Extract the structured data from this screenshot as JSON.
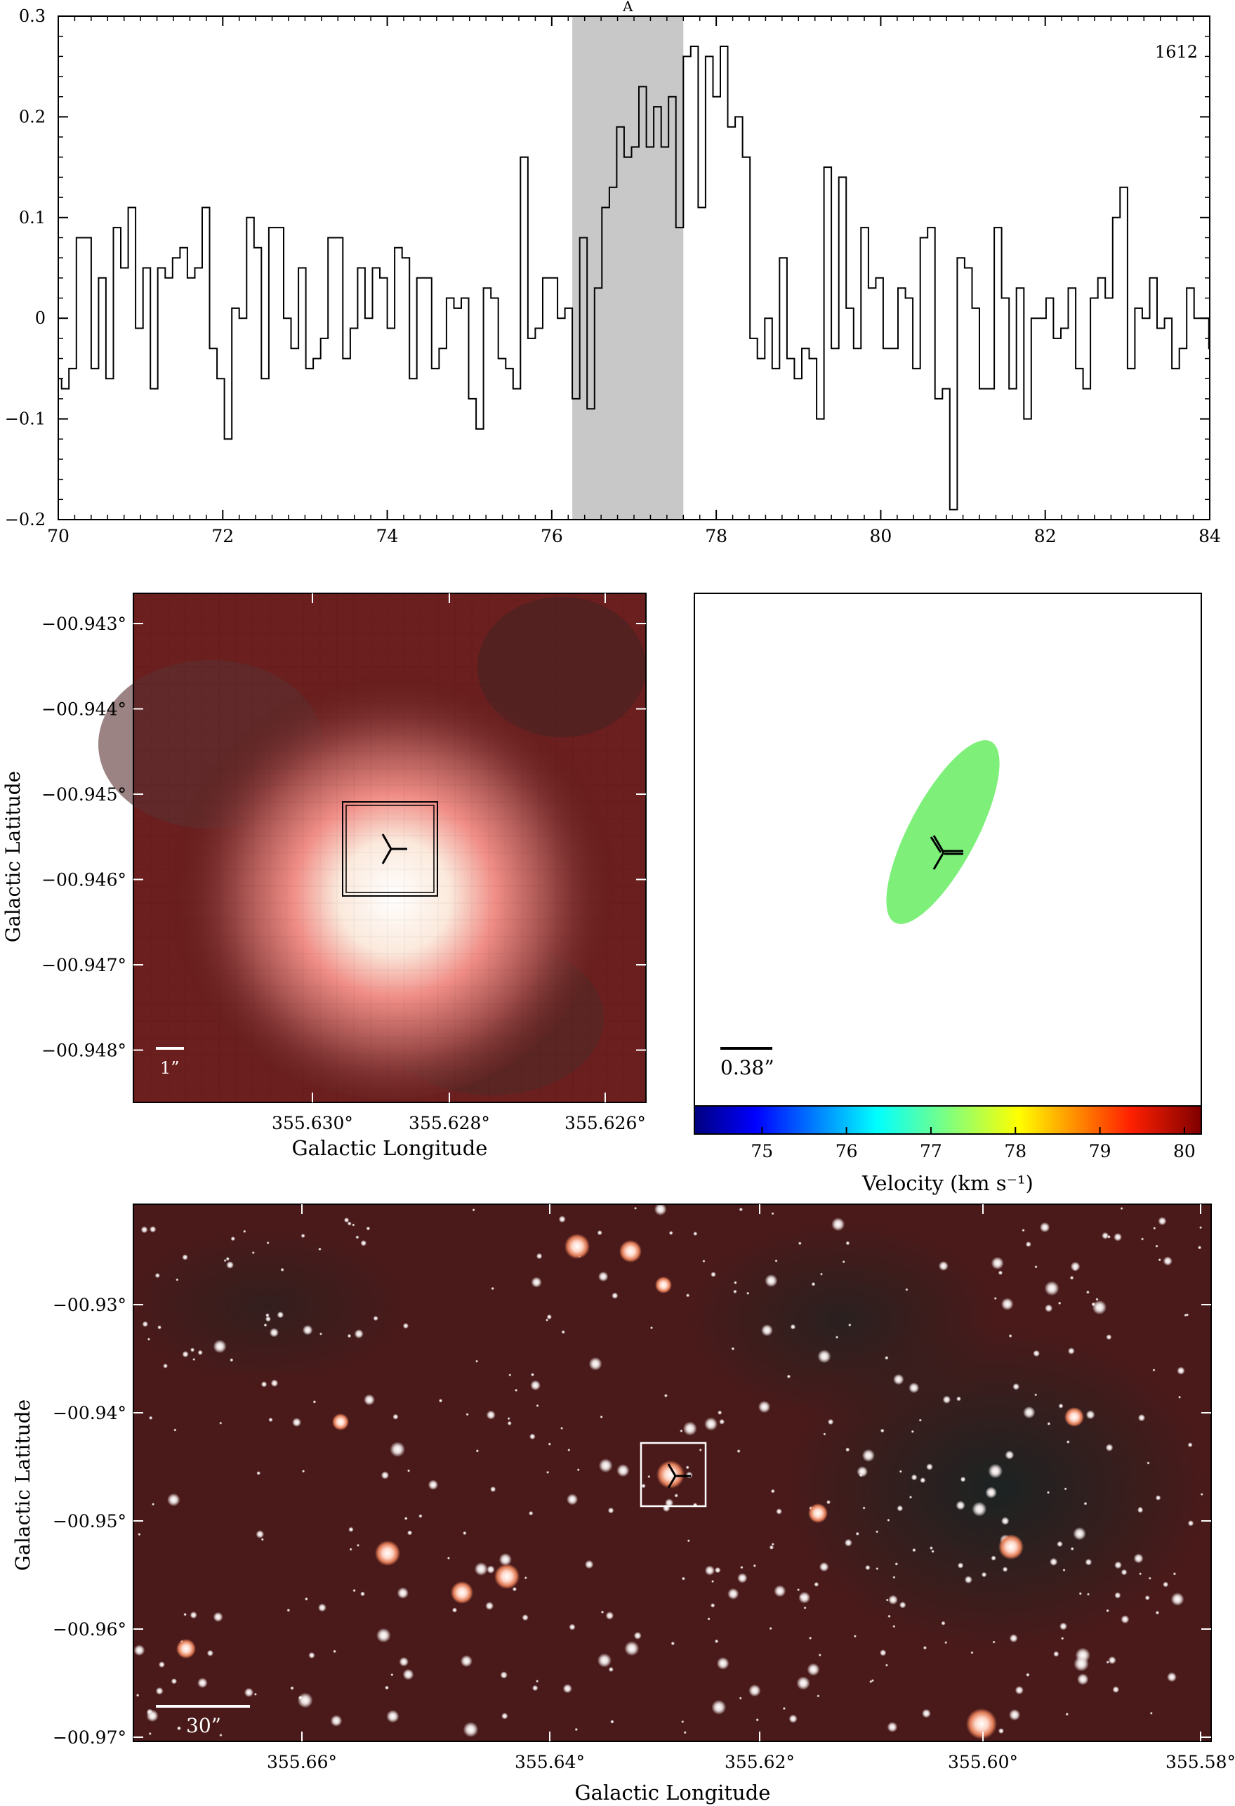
{
  "spectrum": {
    "chart_data": {
      "type": "line",
      "style": "step",
      "annotation": "1612",
      "band_label": "A",
      "band_range": [
        76.25,
        77.6
      ],
      "xlim": [
        70,
        84
      ],
      "ylim": [
        -0.2,
        0.3
      ],
      "x_ticks": [
        "70",
        "72",
        "74",
        "76",
        "78",
        "80",
        "82",
        "84"
      ],
      "y_ticks": [
        "0.3",
        "0.2",
        "0.1",
        "0",
        "−0.1",
        "−0.2"
      ],
      "y_tick_values": [
        0.3,
        0.2,
        0.1,
        0,
        -0.1,
        -0.2
      ],
      "x_tick_values": [
        70,
        72,
        74,
        76,
        78,
        80,
        82,
        84
      ],
      "channel_width": 0.09,
      "x_start": 69.95,
      "values": [
        -0.06,
        -0.07,
        -0.05,
        0.08,
        0.08,
        -0.05,
        0.04,
        -0.06,
        0.09,
        0.05,
        0.11,
        -0.01,
        0.05,
        -0.07,
        0.05,
        0.04,
        0.06,
        0.07,
        0.04,
        0.05,
        0.11,
        -0.03,
        -0.06,
        -0.12,
        0.01,
        0.0,
        0.1,
        0.07,
        -0.06,
        0.09,
        0.09,
        0.0,
        -0.03,
        0.05,
        -0.05,
        -0.04,
        -0.02,
        0.08,
        0.08,
        -0.04,
        -0.01,
        0.05,
        0.0,
        0.05,
        0.04,
        -0.01,
        0.07,
        0.06,
        -0.06,
        0.04,
        0.04,
        -0.05,
        -0.03,
        0.02,
        0.01,
        0.02,
        -0.08,
        -0.11,
        0.03,
        0.02,
        -0.04,
        -0.05,
        -0.07,
        0.16,
        -0.02,
        -0.01,
        0.04,
        0.04,
        0.0,
        0.01,
        -0.08,
        0.08,
        -0.09,
        0.03,
        0.11,
        0.13,
        0.19,
        0.16,
        0.17,
        0.23,
        0.17,
        0.21,
        0.17,
        0.22,
        0.09,
        0.26,
        0.27,
        0.11,
        0.26,
        0.22,
        0.27,
        0.19,
        0.2,
        0.16,
        -0.02,
        -0.04,
        0.0,
        -0.05,
        0.06,
        -0.04,
        -0.06,
        -0.03,
        -0.04,
        -0.1,
        0.15,
        -0.03,
        0.14,
        0.01,
        -0.03,
        0.09,
        0.03,
        0.04,
        -0.03,
        -0.03,
        0.03,
        0.02,
        -0.05,
        0.08,
        0.09,
        -0.08,
        -0.07,
        -0.19,
        0.06,
        0.05,
        0.01,
        -0.07,
        -0.07,
        0.09,
        0.02,
        -0.07,
        0.03,
        -0.1,
        0.0,
        0.0,
        0.02,
        -0.02,
        -0.01,
        0.03,
        -0.05,
        -0.07,
        0.02,
        0.04,
        0.02,
        0.1,
        0.13,
        -0.05,
        0.01,
        0.0,
        0.04,
        -0.01,
        0.0,
        -0.05,
        -0.03,
        0.03,
        0.0,
        0.0,
        -0.03,
        0.0,
        0.02,
        0.03,
        0.0,
        -0.02,
        0.07,
        0.06,
        0.08,
        0.0,
        -0.05,
        0.02,
        0.0,
        -0.03,
        -0.03,
        0.06,
        -0.05,
        -0.01,
        -0.01,
        0.05,
        -0.02,
        0.04,
        0.02,
        0.03,
        0.0,
        -0.01,
        -0.01,
        0.01,
        0.04,
        0.02
      ]
    }
  },
  "zoom_image": {
    "chart_data": {
      "type": "image",
      "ylabel": "Galactic Latitude",
      "xlabel": "Galactic Longitude",
      "y_ticks": [
        "−00.943°",
        "−00.944°",
        "−00.945°",
        "−00.946°",
        "−00.947°",
        "−00.948°"
      ],
      "x_ticks": [
        "355.630°",
        "355.628°",
        "355.626°"
      ],
      "scale_bar_label": "1”"
    }
  },
  "velocity_map": {
    "chart_data": {
      "type": "heatmap",
      "scale_bar_label": "0.38”",
      "colorbar_ticks": [
        "75",
        "76",
        "77",
        "78",
        "79",
        "80"
      ],
      "colorbar_values": [
        75,
        76,
        77,
        78,
        79,
        80
      ],
      "colorbar_range": [
        74.2,
        80.2
      ],
      "colorbar_label": "Velocity (km s⁻¹)",
      "ellipse_color": "#7ef07a",
      "ellipse_velocity": 77.5
    }
  },
  "wide_image": {
    "chart_data": {
      "type": "image",
      "ylabel": "Galactic Latitude",
      "xlabel": "Galactic Longitude",
      "y_ticks": [
        "−00.93°",
        "−00.94°",
        "−00.95°",
        "−00.96°",
        "−00.97°"
      ],
      "x_ticks": [
        "355.66°",
        "355.64°",
        "355.62°",
        "355.60°",
        "355.58°"
      ],
      "scale_bar_label": "30”"
    }
  }
}
